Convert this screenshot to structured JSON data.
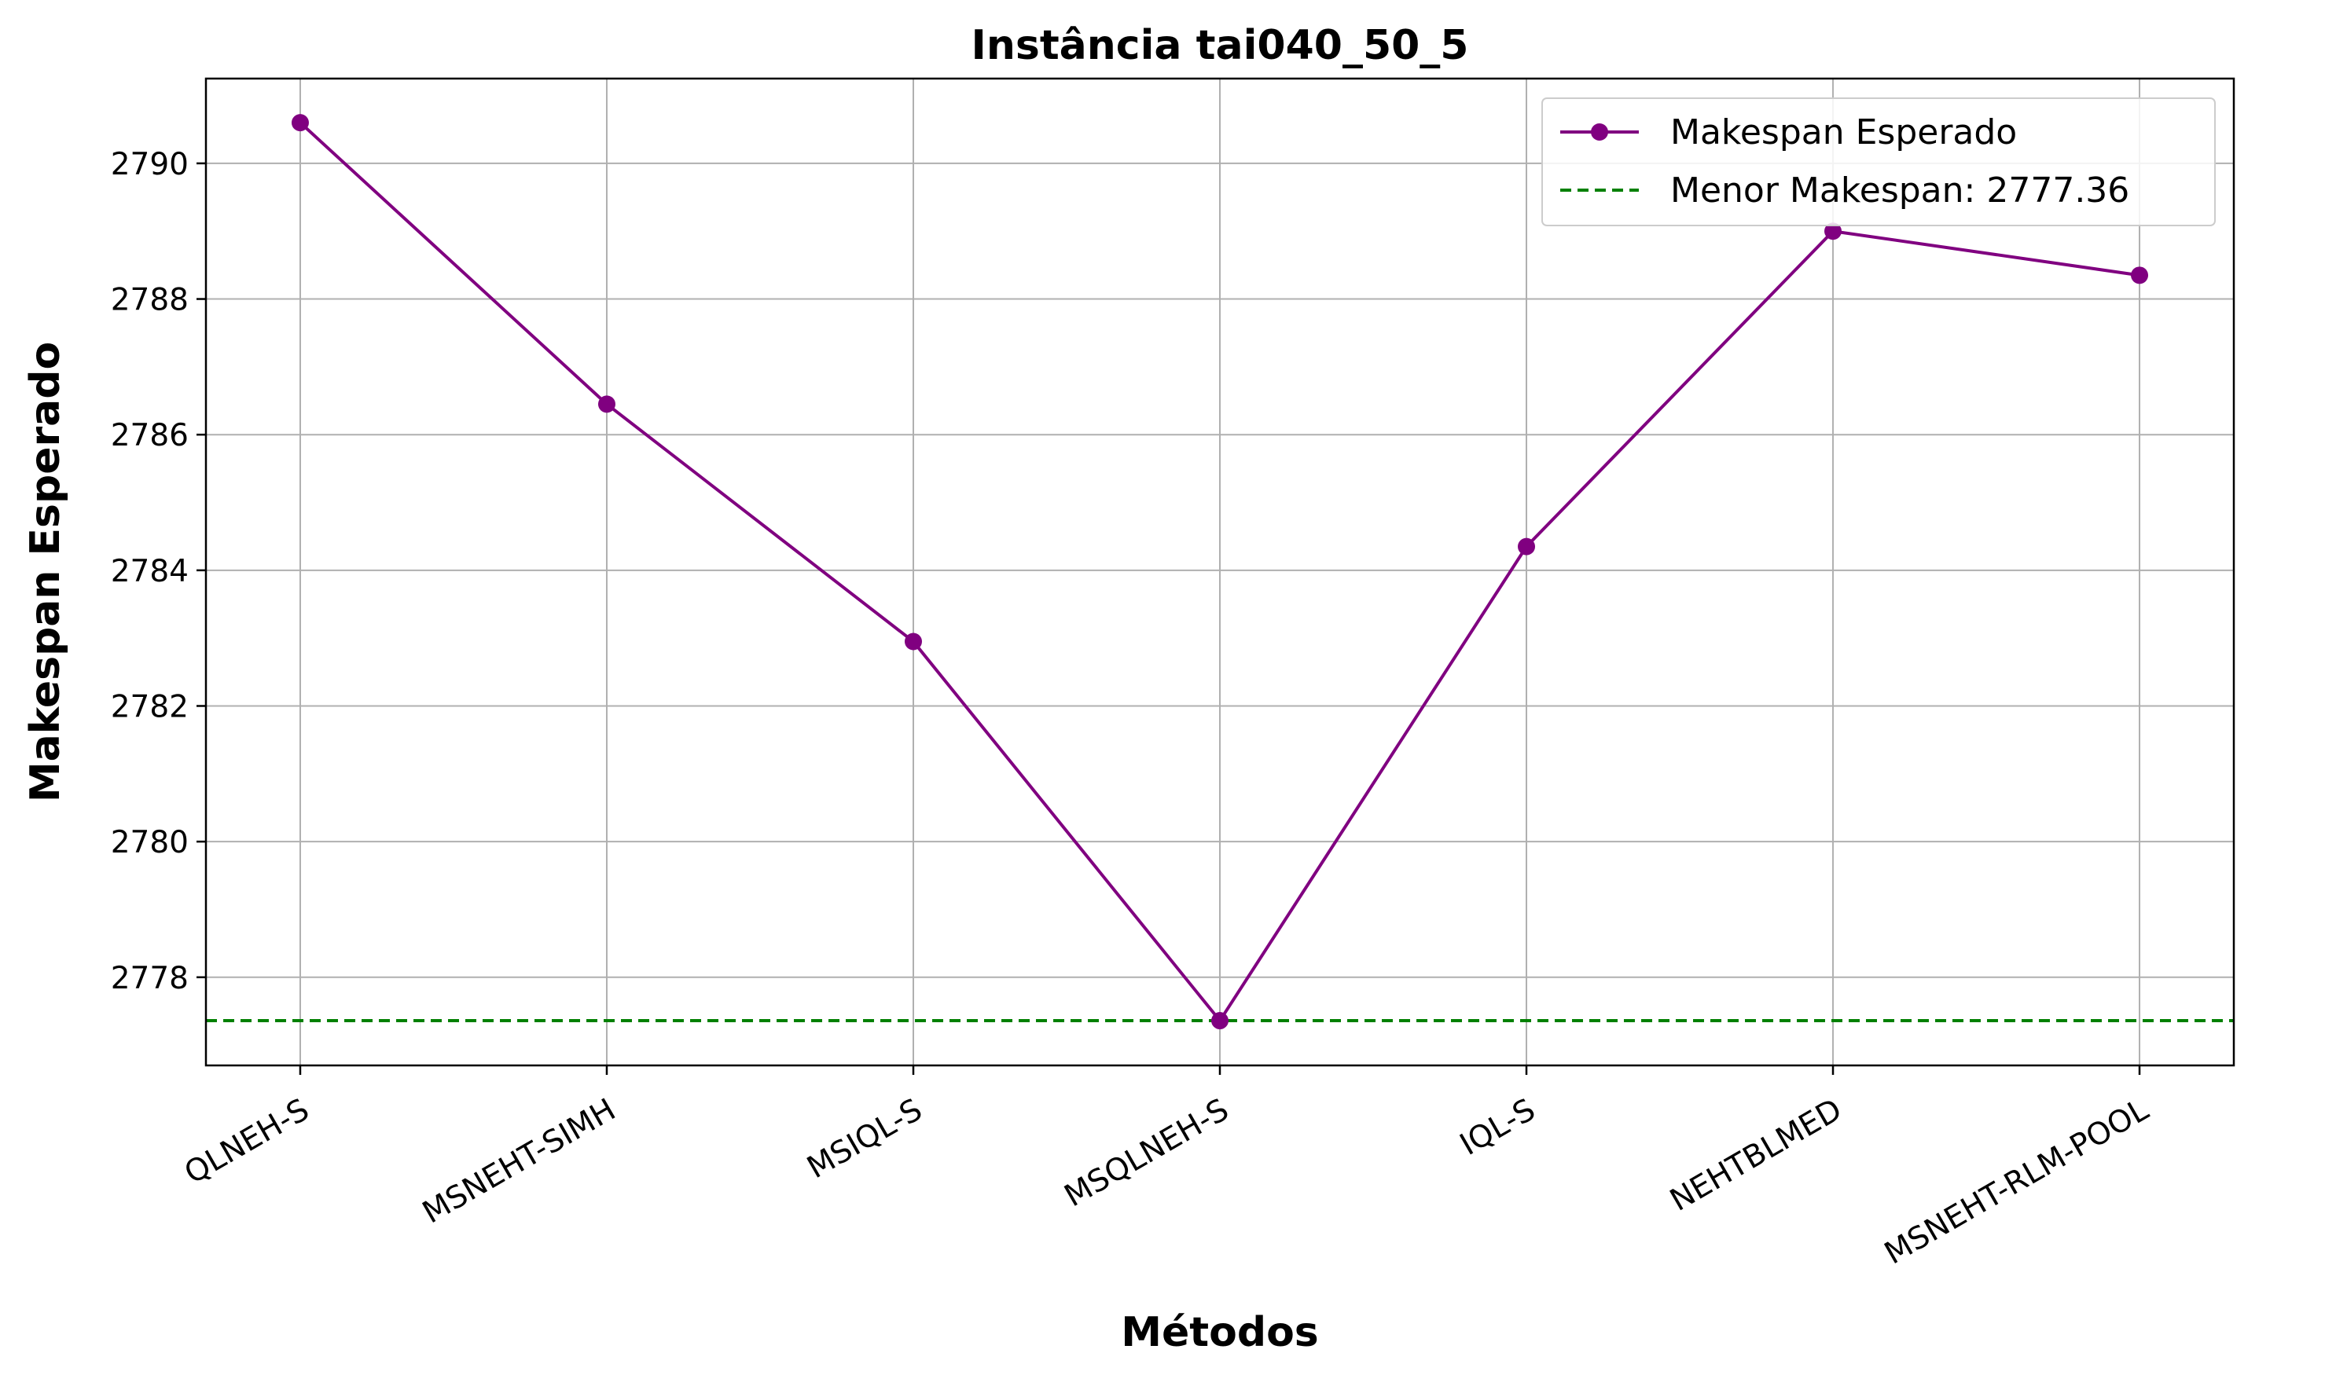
{
  "chart_data": {
    "type": "line",
    "title": "Instância tai040_50_5",
    "xlabel": "Métodos",
    "ylabel": "Makespan Esperado",
    "categories": [
      "QLNEH-S",
      "MSNEHT-SIMH",
      "MSIQL-S",
      "MSQLNEH-S",
      "IQL-S",
      "NEHTBLMED",
      "MSNEHT-RLM-POOL"
    ],
    "series": [
      {
        "name": "Makespan Esperado",
        "color": "#800080",
        "marker": "circle",
        "values": [
          2790.6,
          2786.45,
          2782.95,
          2777.36,
          2784.35,
          2789.0,
          2788.35
        ]
      }
    ],
    "reference_line": {
      "label": "Menor Makespan: 2777.36",
      "value": 2777.36,
      "color": "#008000",
      "style": "dashed"
    },
    "ylim": [
      2776.7,
      2791.25
    ],
    "yticks": [
      2778,
      2780,
      2782,
      2784,
      2786,
      2788,
      2790
    ],
    "grid": true,
    "legend_position": "top-right",
    "xtick_rotation": 30
  }
}
